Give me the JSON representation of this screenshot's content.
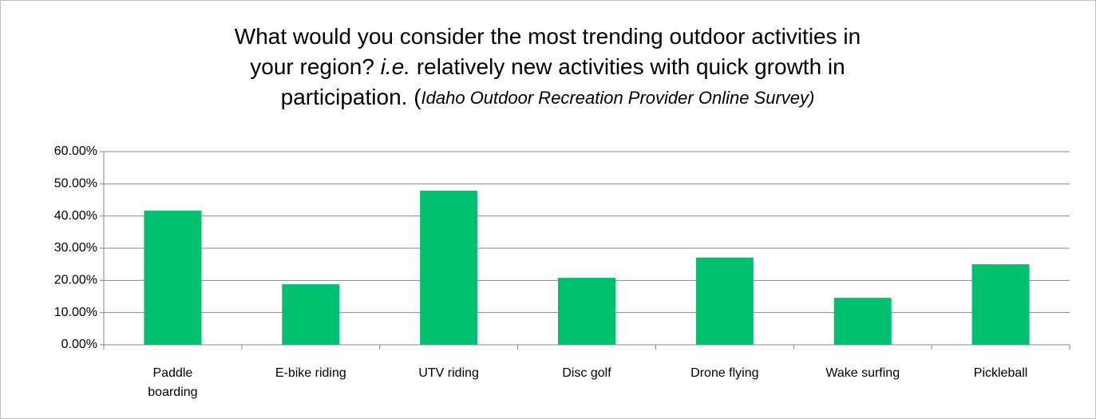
{
  "chart_data": {
    "type": "bar",
    "title": [
      [
        {
          "text": "What would you consider the most trending outdoor activities in",
          "italic": false
        }
      ],
      [
        {
          "text": "your region? ",
          "italic": false
        },
        {
          "text": "i.e.",
          "italic": true
        },
        {
          "text": " relatively new activities with quick growth in",
          "italic": false
        }
      ],
      [
        {
          "text": "participation. (",
          "italic": false
        },
        {
          "text": "Idaho Outdoor Recreation Provider Online Survey)",
          "italic": true
        }
      ]
    ],
    "categories": [
      "Paddle boarding",
      "E-bike riding",
      "UTV riding",
      "Disc golf",
      "Drone flying",
      "Wake surfing",
      "Pickleball"
    ],
    "values": [
      41.7,
      18.8,
      47.9,
      20.8,
      27.1,
      14.6,
      25.0
    ],
    "color": "#00c06f",
    "ylim": [
      0,
      60
    ],
    "yticks": [
      {
        "value": 0,
        "label": "0.00%"
      },
      {
        "value": 10,
        "label": "10.00%"
      },
      {
        "value": 20,
        "label": "20.00%"
      },
      {
        "value": 30,
        "label": "30.00%"
      },
      {
        "value": 40,
        "label": "40.00%"
      },
      {
        "value": 50,
        "label": "50.00%"
      },
      {
        "value": 60,
        "label": "60.00%"
      }
    ],
    "grid": true
  }
}
